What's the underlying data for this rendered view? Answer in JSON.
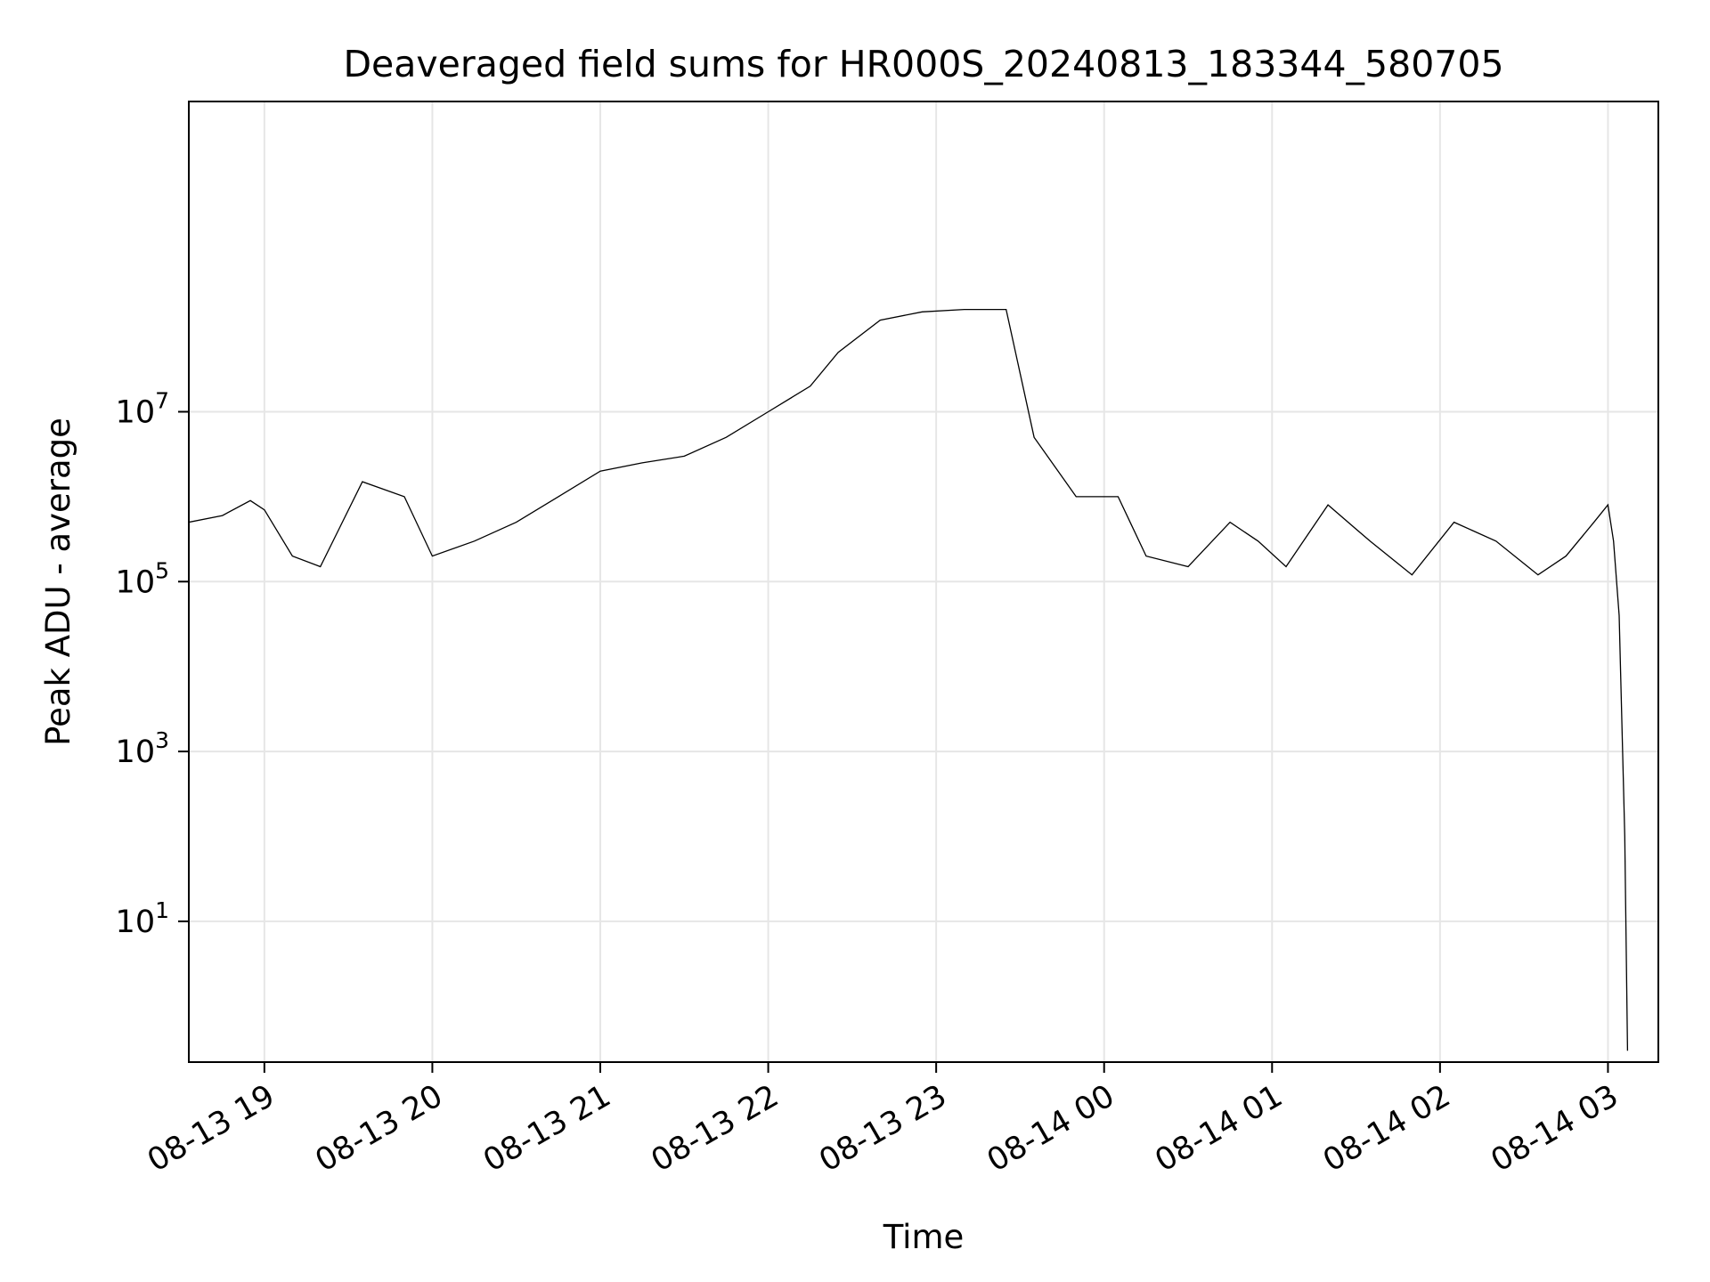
{
  "chart_data": {
    "type": "line",
    "title": "Deaveraged field sums for HR000S_20240813_183344_580705",
    "xlabel": "Time",
    "ylabel": "Peak ADU - average",
    "xscale": "time",
    "yscale": "log",
    "grid": true,
    "legend": "none",
    "xlim": [
      "2024-08-13 18:33",
      "2024-08-14 03:18"
    ],
    "ylim": [
      0.22,
      45000000000
    ],
    "x_ticks": [
      "2024-08-13 19:00",
      "2024-08-13 20:00",
      "2024-08-13 21:00",
      "2024-08-13 22:00",
      "2024-08-13 23:00",
      "2024-08-14 00:00",
      "2024-08-14 01:00",
      "2024-08-14 02:00",
      "2024-08-14 03:00"
    ],
    "x_tick_labels": [
      "08-13 19",
      "08-13 20",
      "08-13 21",
      "08-13 22",
      "08-13 23",
      "08-14 00",
      "08-14 01",
      "08-14 02",
      "08-14 03"
    ],
    "y_ticks": [
      10,
      1000,
      100000,
      10000000
    ],
    "y_tick_labels": [
      {
        "base": "10",
        "exp": "1"
      },
      {
        "base": "10",
        "exp": "3"
      },
      {
        "base": "10",
        "exp": "5"
      },
      {
        "base": "10",
        "exp": "7"
      }
    ],
    "line_color": "#000000",
    "series": [
      {
        "color": "#000000",
        "x": [
          "2024-08-13 18:33",
          "2024-08-13 18:45",
          "2024-08-13 18:55",
          "2024-08-13 19:00",
          "2024-08-13 19:10",
          "2024-08-13 19:20",
          "2024-08-13 19:35",
          "2024-08-13 19:50",
          "2024-08-13 20:00",
          "2024-08-13 20:15",
          "2024-08-13 20:30",
          "2024-08-13 20:45",
          "2024-08-13 21:00",
          "2024-08-13 21:15",
          "2024-08-13 21:30",
          "2024-08-13 21:45",
          "2024-08-13 22:00",
          "2024-08-13 22:15",
          "2024-08-13 22:25",
          "2024-08-13 22:40",
          "2024-08-13 22:55",
          "2024-08-13 23:10",
          "2024-08-13 23:25",
          "2024-08-13 23:35",
          "2024-08-13 23:50",
          "2024-08-14 00:05",
          "2024-08-14 00:15",
          "2024-08-14 00:30",
          "2024-08-14 00:45",
          "2024-08-14 00:55",
          "2024-08-14 01:05",
          "2024-08-14 01:20",
          "2024-08-14 01:35",
          "2024-08-14 01:50",
          "2024-08-14 02:05",
          "2024-08-14 02:20",
          "2024-08-14 02:35",
          "2024-08-14 02:45",
          "2024-08-14 02:55",
          "2024-08-14 03:00",
          "2024-08-14 03:02",
          "2024-08-14 03:04",
          "2024-08-14 03:06",
          "2024-08-14 03:07"
        ],
        "y": [
          500000,
          600000,
          900000,
          700000,
          200000,
          150000,
          1500000,
          1000000,
          200000,
          300000,
          500000,
          1000000,
          2000000,
          2500000,
          3000000,
          5000000,
          10000000,
          20000000,
          50000000,
          120000000,
          150000000,
          160000000,
          160000000,
          5000000,
          1000000,
          1000000,
          200000,
          150000,
          500000,
          300000,
          150000,
          800000,
          300000,
          120000,
          500000,
          300000,
          120000,
          200000,
          500000,
          800000,
          300000,
          40000,
          100,
          0.3
        ]
      }
    ]
  }
}
